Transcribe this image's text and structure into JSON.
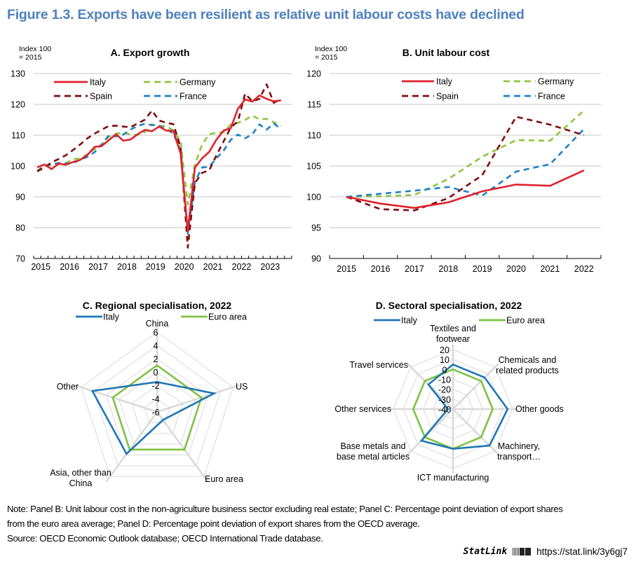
{
  "figure": {
    "title": "Figure 1.3. Exports have been resilient as relative unit labour costs have declined",
    "title_color": "#4f81bd"
  },
  "colors": {
    "Italy_line": "#e0212b",
    "Spain_line": "#7f0c0c",
    "Germany_line": "#8cc63f",
    "France_line": "#1f80c8",
    "Italy_radar": "#1f77b4",
    "EuroArea_radar": "#7dc242",
    "grid": "#d9d9d9"
  },
  "chart_data": [
    {
      "id": "A",
      "type": "line",
      "title": "A. Export growth",
      "ylabel": "Index 100\n= 2015",
      "ylabel_lines": [
        "Index 100",
        "= 2015"
      ],
      "xlabel": "",
      "ylim": [
        70,
        130
      ],
      "yticks": [
        70,
        80,
        90,
        100,
        110,
        120,
        130
      ],
      "x_tick_labels": [
        "2015",
        "2016",
        "2017",
        "2018",
        "2019",
        "2020",
        "2021",
        "2022",
        "2023"
      ],
      "x_frequency": "quarterly",
      "x_start": "2015Q1",
      "grid": true,
      "legend": "top-left",
      "series": [
        {
          "name": "Italy",
          "style": "solid",
          "values": [
            99.6,
            100.5,
            99.0,
            100.8,
            100.4,
            101.3,
            102.0,
            103.6,
            106.2,
            106.5,
            108.4,
            110.3,
            108.2,
            108.6,
            110.3,
            111.7,
            111.3,
            112.8,
            111.5,
            111.4,
            104.0,
            79.0,
            99.5,
            102.5,
            104.6,
            108.6,
            111.5,
            112.3,
            118.6,
            121.6,
            120.9,
            122.9,
            121.8,
            121.0,
            121.3
          ]
        },
        {
          "name": "Spain",
          "style": "dashed",
          "values": [
            98.3,
            99.5,
            101.2,
            102.3,
            103.5,
            105.2,
            107.0,
            109.0,
            110.5,
            111.8,
            113.0,
            113.1,
            112.8,
            112.6,
            113.8,
            115.0,
            118.0,
            114.8,
            114.0,
            113.6,
            106.0,
            73.5,
            94.5,
            97.8,
            98.6,
            103.5,
            108.0,
            112.5,
            114.5,
            123.5,
            121.0,
            121.8,
            126.5,
            120.5,
            121.8
          ]
        },
        {
          "name": "Germany",
          "style": "dashed",
          "values": [
            98.5,
            100.1,
            100.5,
            100.6,
            101.0,
            102.2,
            102.5,
            103.8,
            105.5,
            107.0,
            109.5,
            110.5,
            110.8,
            110.2,
            110.1,
            111.0,
            113.5,
            113.0,
            113.0,
            111.5,
            108.0,
            87.5,
            100.5,
            107.0,
            110.3,
            110.8,
            111.0,
            113.5,
            114.0,
            115.0,
            116.3,
            115.2,
            115.3,
            114.2,
            113.0
          ]
        },
        {
          "name": "France",
          "style": "dashed",
          "values": [
            98.2,
            100.0,
            100.6,
            101.0,
            100.8,
            101.0,
            102.0,
            103.0,
            104.5,
            107.0,
            110.0,
            109.6,
            110.2,
            111.8,
            113.0,
            113.7,
            113.3,
            113.0,
            112.0,
            110.5,
            105.0,
            78.0,
            95.0,
            99.5,
            99.8,
            102.5,
            105.0,
            108.5,
            110.2,
            109.0,
            110.3,
            113.5,
            111.8,
            113.8,
            112.0
          ]
        }
      ]
    },
    {
      "id": "B",
      "type": "line",
      "title": "B. Unit labour cost",
      "ylabel": "Index 100\n= 2015",
      "ylabel_lines": [
        "Index 100",
        "= 2015"
      ],
      "xlabel": "",
      "ylim": [
        90,
        120
      ],
      "yticks": [
        90,
        95,
        100,
        105,
        110,
        115,
        120
      ],
      "categories": [
        "2015",
        "2016",
        "2017",
        "2018",
        "2019",
        "2020",
        "2021",
        "2022"
      ],
      "grid": true,
      "legend": "top",
      "series": [
        {
          "name": "Italy",
          "style": "solid",
          "values": [
            100.0,
            98.9,
            98.2,
            99.1,
            100.9,
            102.0,
            101.8,
            104.3
          ]
        },
        {
          "name": "Germany",
          "style": "dashed",
          "values": [
            100.0,
            100.1,
            100.3,
            102.9,
            106.5,
            109.2,
            109.1,
            114.0
          ]
        },
        {
          "name": "Spain",
          "style": "dashed",
          "values": [
            100.0,
            98.0,
            97.8,
            99.8,
            103.5,
            113.0,
            111.7,
            110.0
          ]
        },
        {
          "name": "France",
          "style": "dashed",
          "values": [
            100.0,
            100.5,
            101.0,
            101.6,
            100.2,
            104.1,
            105.3,
            111.0
          ]
        }
      ]
    },
    {
      "id": "C",
      "type": "radar",
      "title": "C. Regional specialisation, 2022",
      "axes": [
        "China",
        "US",
        "Euro area",
        "Asia, other than China",
        "Other"
      ],
      "axis_label_lines": [
        [
          "China"
        ],
        [
          "US"
        ],
        [
          "Euro area"
        ],
        [
          "Asia, other than",
          "China"
        ],
        [
          "Other"
        ]
      ],
      "rlim": [
        -6,
        6
      ],
      "rticks": [
        -6,
        -4,
        -2,
        0,
        2,
        4,
        6
      ],
      "legend": "top",
      "series": [
        {
          "name": "Italy",
          "values": [
            -1.5,
            3.0,
            -4.5,
            1.8,
            4.2
          ]
        },
        {
          "name": "Euro area",
          "values": [
            1.0,
            1.0,
            1.0,
            1.0,
            1.0
          ]
        }
      ]
    },
    {
      "id": "D",
      "type": "radar",
      "title": "D. Sectoral specialisation, 2022",
      "axes": [
        "Textiles and footwear",
        "Chemicals and related products",
        "Other goods",
        "Machinery, transport…",
        "ICT manufacturing",
        "Base metals and base metal articles",
        "Other services",
        "Travel services"
      ],
      "axis_label_lines": [
        [
          "Textiles and",
          "footwear"
        ],
        [
          "Chemicals and",
          "related products"
        ],
        [
          "Other goods"
        ],
        [
          "Machinery,",
          "transport…"
        ],
        [
          "ICT manufacturing"
        ],
        [
          "Base metals and",
          "base metal articles"
        ],
        [
          "Other services"
        ],
        [
          "Travel services"
        ]
      ],
      "rlim": [
        -40,
        20
      ],
      "rticks": [
        -40,
        -30,
        -20,
        -10,
        0,
        10,
        20
      ],
      "legend": "top",
      "series": [
        {
          "name": "Italy",
          "values": [
            5,
            5,
            15,
            12,
            0,
            5,
            -35,
            -5
          ]
        },
        {
          "name": "Euro area",
          "values": [
            0,
            0,
            0,
            0,
            0,
            0,
            0,
            0
          ]
        }
      ]
    }
  ],
  "footer": {
    "note_line1": "Note: Panel B: Unit labour cost in the non-agriculture business sector excluding real estate; Panel C: Percentage point deviation of export shares",
    "note_line2": "from the euro area average; Panel D: Percentage point deviation of export shares from the OECD average.",
    "source": "Source: OECD Economic Outlook database; OECD International Trade database.",
    "statlink_brand": "StatLink",
    "statlink_url": "https://stat.link/3y6gj7"
  }
}
